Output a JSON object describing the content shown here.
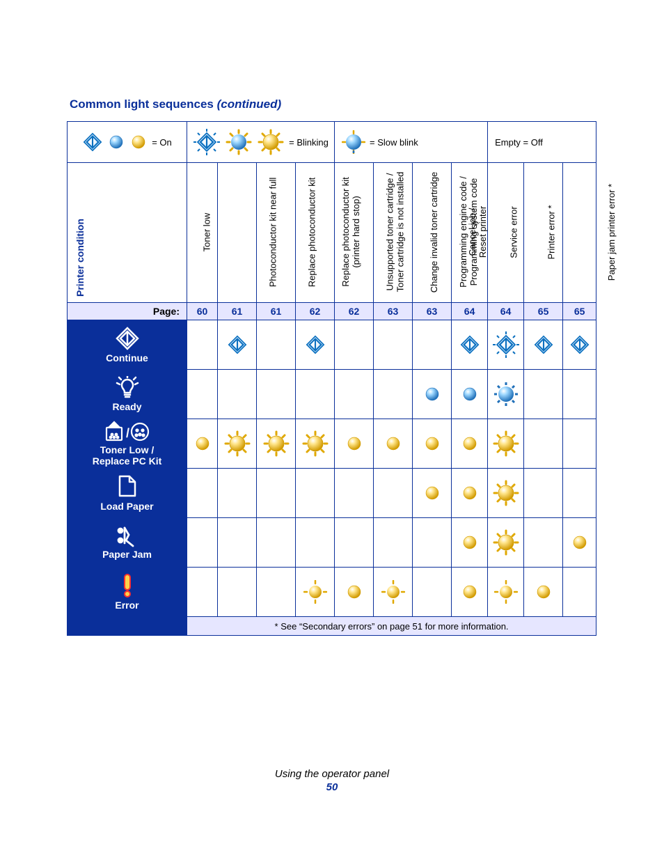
{
  "colors": {
    "accent": "#0a2f9a",
    "header_bg": "#e6e6ff",
    "row_head_bg": "#0a2f9a",
    "row_head_text": "#ffffff",
    "diamond_stroke": "#0a6fbf",
    "diamond_fill_light": "#dff0ff",
    "blue_orb": "#5fb5ff",
    "blue_orb_dark": "#1f6fb8",
    "amber_orb": "#ffd24a",
    "amber_orb_dark": "#d19a00",
    "amber_ray": "#e0a800",
    "white": "#ffffff",
    "error_red": "#ff3030"
  },
  "title": "Common light sequences ",
  "title_cont": "(continued)",
  "legend": {
    "on": "= On",
    "blinking": "= Blinking",
    "slow_blink": "= Slow blink",
    "off": "Empty = Off"
  },
  "columns": [
    {
      "label": "Printer condition",
      "page": ""
    },
    {
      "label": "Toner low",
      "page": "60"
    },
    {
      "label": "Photoconductor kit near full",
      "page": "61"
    },
    {
      "label": "Replace photoconductor kit",
      "page": "61"
    },
    {
      "label": "Replace photoconductor kit\n(printer hard stop)",
      "page": "62"
    },
    {
      "label": "Unsupported toner cartridge /\nToner cartridge is not installed",
      "page": "62"
    },
    {
      "label": "Change invalid toner cartridge",
      "page": "63"
    },
    {
      "label": "Programming engine code /\nProgramming system code",
      "page": "63"
    },
    {
      "label": "Cancel job /\nReset printer",
      "page": "64"
    },
    {
      "label": "Service error",
      "page": "64"
    },
    {
      "label": "Printer error *",
      "page": "65"
    },
    {
      "label": "Paper jam printer error *",
      "page": "65"
    }
  ],
  "page_label": "Page:",
  "rows": [
    {
      "key": "continue",
      "label": "Continue",
      "cells": [
        "",
        "diamond-on",
        "",
        "diamond-on",
        "",
        "",
        "",
        "diamond-on",
        "diamond-blink",
        "diamond-on",
        "diamond-on"
      ]
    },
    {
      "key": "ready",
      "label": "Ready",
      "cells": [
        "",
        "",
        "",
        "",
        "",
        "",
        "blue-on",
        "blue-on",
        "blue-blink",
        "",
        ""
      ]
    },
    {
      "key": "toner_low",
      "label": "Toner Low /\nReplace PC Kit",
      "cells": [
        "amber-on",
        "amber-blink",
        "amber-blink",
        "amber-blink",
        "amber-on",
        "amber-on",
        "amber-on",
        "amber-on",
        "amber-blink",
        "",
        ""
      ]
    },
    {
      "key": "load_paper",
      "label": "Load Paper",
      "cells": [
        "",
        "",
        "",
        "",
        "",
        "",
        "amber-on",
        "amber-on",
        "amber-blink",
        "",
        ""
      ]
    },
    {
      "key": "paper_jam",
      "label": "Paper Jam",
      "cells": [
        "",
        "",
        "",
        "",
        "",
        "",
        "",
        "amber-on",
        "amber-blink",
        "",
        "amber-on"
      ]
    },
    {
      "key": "error",
      "label": "Error",
      "cells": [
        "",
        "",
        "",
        "amber-blink-small",
        "amber-on",
        "amber-blink-small",
        "",
        "amber-on",
        "amber-blink-small",
        "amber-on",
        ""
      ]
    }
  ],
  "footnote": "* See “Secondary errors” on page 51 for more information.",
  "footer": {
    "title": "Using the operator panel",
    "page": "50"
  }
}
